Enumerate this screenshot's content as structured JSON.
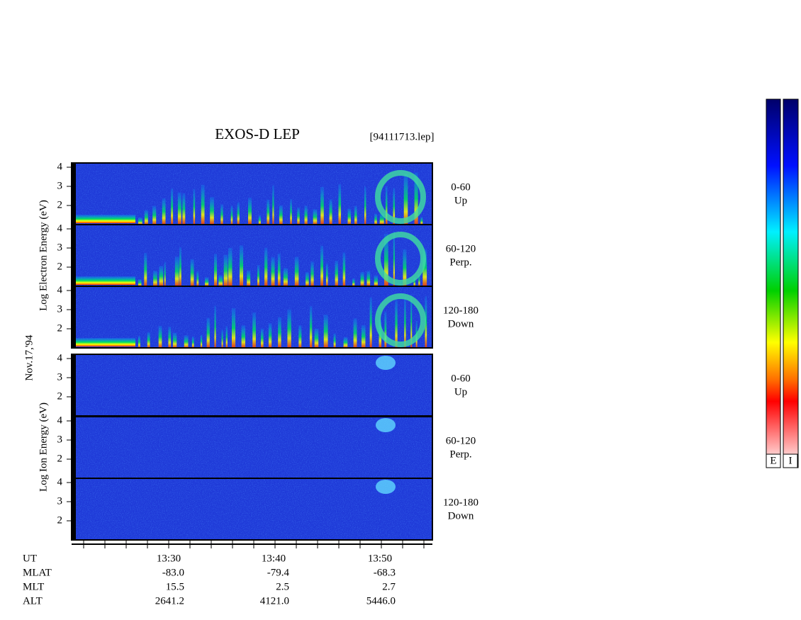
{
  "title": "EXOS-D LEP",
  "file": "[94111713.lep]",
  "date": "Nov.17,'94",
  "groups": [
    {
      "label": "Log Electron Energy (eV)",
      "panels": [
        {
          "range": "0-60",
          "direction": "Up"
        },
        {
          "range": "60-120",
          "direction": "Perp."
        },
        {
          "range": "120-180",
          "direction": "Down"
        }
      ]
    },
    {
      "label": "Log Ion Energy (eV)",
      "panels": [
        {
          "range": "0-60",
          "direction": "Up"
        },
        {
          "range": "60-120",
          "direction": "Perp."
        },
        {
          "range": "120-180",
          "direction": "Down"
        }
      ]
    }
  ],
  "energy_ticks": [
    "4",
    "3",
    "2"
  ],
  "ephemeris": {
    "rows": [
      {
        "name": "UT",
        "values": [
          "13:30",
          "13:40",
          "13:50"
        ]
      },
      {
        "name": "MLAT",
        "values": [
          "-83.0",
          "-79.4",
          "-68.3"
        ]
      },
      {
        "name": "MLT",
        "values": [
          "15.5",
          "2.5",
          "2.7"
        ]
      },
      {
        "name": "ALT",
        "values": [
          "2641.2",
          "4121.0",
          "5446.0"
        ]
      }
    ]
  },
  "colorbars": [
    "E",
    "I"
  ]
}
